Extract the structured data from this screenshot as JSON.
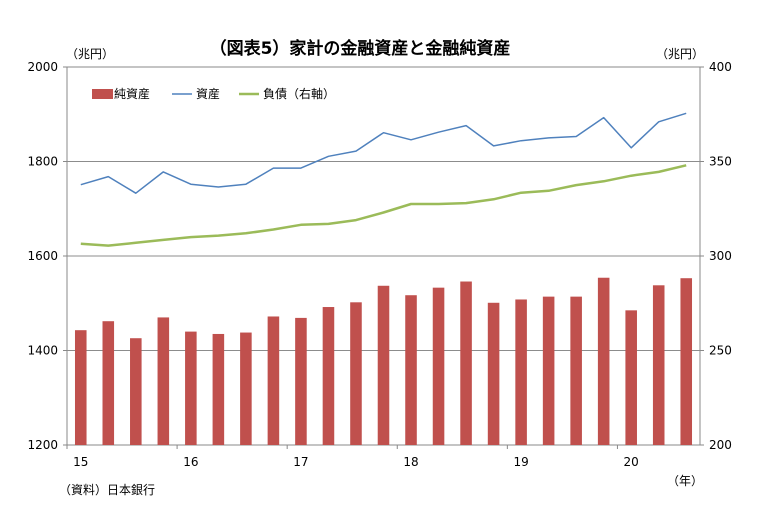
{
  "chart_data": {
    "type": "bar+line",
    "title": "（図表5）家計の金融資産と金融純資産",
    "left_unit": "（兆円）",
    "right_unit": "（兆円）",
    "x_unit": "（年）",
    "source": "（資料）日本銀行",
    "left_axis": {
      "min": 1200,
      "max": 2000,
      "ticks": [
        "1200",
        "1400",
        "1600",
        "1800",
        "2000"
      ]
    },
    "right_axis": {
      "min": 200,
      "max": 400,
      "ticks": [
        "200",
        "250",
        "300",
        "350",
        "400"
      ]
    },
    "x_tick_labels": [
      {
        "label": "15",
        "index": 0
      },
      {
        "label": "16",
        "index": 4
      },
      {
        "label": "17",
        "index": 8
      },
      {
        "label": "18",
        "index": 12
      },
      {
        "label": "19",
        "index": 16
      },
      {
        "label": "20",
        "index": 20
      }
    ],
    "legend": [
      "純資産",
      "資産",
      "負債（右軸）"
    ],
    "series": [
      {
        "name": "純資産",
        "kind": "bar",
        "axis": "left",
        "color": "#c0504d",
        "values": [
          1443,
          1462,
          1426,
          1470,
          1440,
          1435,
          1438,
          1472,
          1469,
          1492,
          1502,
          1537,
          1517,
          1533,
          1546,
          1501,
          1508,
          1514,
          1514,
          1554,
          1485,
          1538,
          1553
        ]
      },
      {
        "name": "資産",
        "kind": "line",
        "axis": "left",
        "color": "#4f81bd",
        "values": [
          1751,
          1768,
          1733,
          1778,
          1752,
          1746,
          1752,
          1786,
          1786,
          1811,
          1822,
          1861,
          1846,
          1862,
          1876,
          1833,
          1844,
          1850,
          1853,
          1893,
          1829,
          1884,
          1902
        ]
      },
      {
        "name": "負債（右軸）",
        "kind": "line",
        "axis": "right",
        "color": "#9bbb59",
        "values": [
          306.5,
          305.5,
          307,
          308.5,
          310,
          310.8,
          312,
          314,
          316.5,
          317,
          319,
          323,
          327.5,
          327.5,
          328,
          330,
          333.5,
          334.5,
          337.5,
          339.5,
          342.5,
          344.5,
          348
        ]
      }
    ]
  }
}
